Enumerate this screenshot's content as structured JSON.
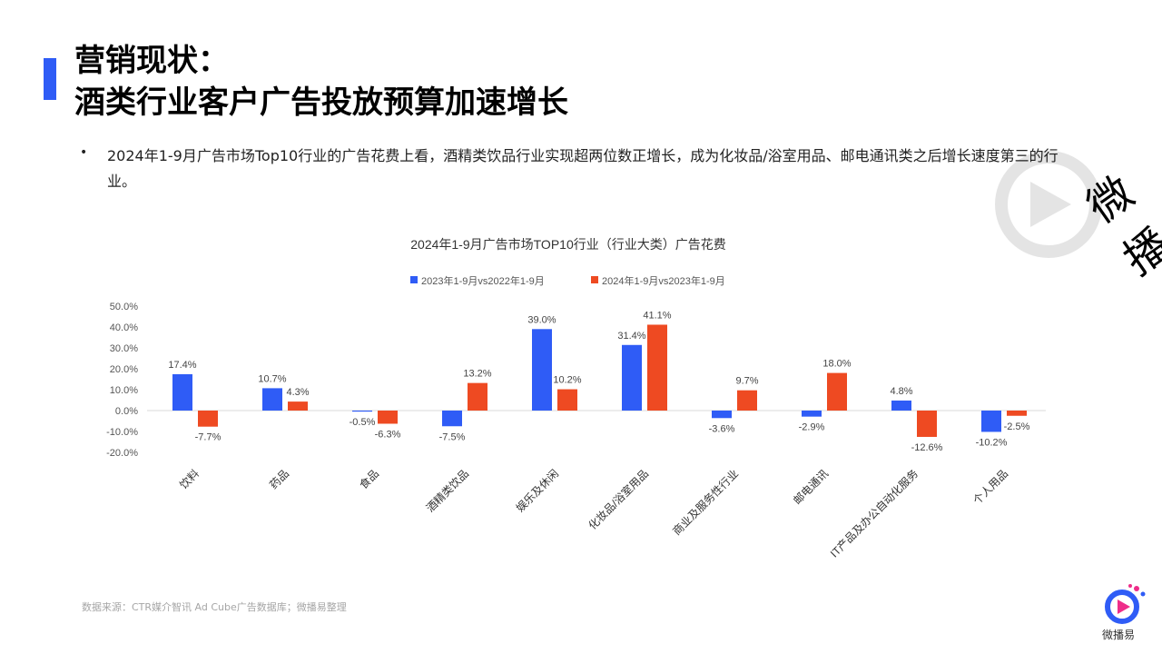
{
  "header": {
    "title_line1": "营销现状：",
    "title_line2": "酒类行业客户广告投放预算加速增长",
    "accent_color": "#2f5cf6"
  },
  "bullets": [
    {
      "marker": "•",
      "text": "2024年1-9月广告市场Top10行业的广告花费上看，酒精类饮品行业实现超两位数正增长，成为化妆品/浴室用品、邮电通讯类之后增长速度第三的行业。"
    }
  ],
  "watermark": {
    "text": "微播"
  },
  "chart_data": {
    "type": "bar",
    "title": "2024年1-9月广告市场TOP10行业（行业大类）广告花费",
    "categories": [
      "饮料",
      "药品",
      "食品",
      "酒精类饮品",
      "娱乐及休闲",
      "化妆品/浴室用品",
      "商业及服务性行业",
      "邮电通讯",
      "IT产品及办公自动化服务",
      "个人用品"
    ],
    "series": [
      {
        "name": "2023年1-9月vs2022年1-9月",
        "color": "#2f5cf6",
        "values": [
          17.4,
          10.7,
          -0.5,
          -7.5,
          39.0,
          31.4,
          -3.6,
          -2.9,
          4.8,
          -10.2
        ],
        "labels": [
          "17.4%",
          "10.7%",
          "-0.5%",
          "-7.5%",
          "39.0%",
          "31.4%",
          "-3.6%",
          "-2.9%",
          "4.8%",
          "-10.2%"
        ]
      },
      {
        "name": "2024年1-9月vs2023年1-9月",
        "color": "#ee4a22",
        "values": [
          -7.7,
          4.3,
          -6.3,
          13.2,
          10.2,
          41.1,
          9.7,
          18.0,
          -12.6,
          -2.5
        ],
        "labels": [
          "-7.7%",
          "4.3%",
          "-6.3%",
          "13.2%",
          "10.2%",
          "41.1%",
          "9.7%",
          "18.0%",
          "-12.6%",
          "-2.5%"
        ]
      }
    ],
    "ylim": [
      -20,
      50
    ],
    "yticks": [
      "50.0%",
      "40.0%",
      "30.0%",
      "20.0%",
      "10.0%",
      "0.0%",
      "-10.0%",
      "-20.0%"
    ],
    "legend_position": "top-center",
    "grid": false
  },
  "footer": {
    "source": "数据来源：CTR媒介智讯 Ad Cube广告数据库；微播易整理",
    "logo_text": "微播易"
  }
}
